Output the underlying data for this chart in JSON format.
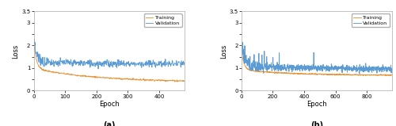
{
  "subplot_a": {
    "title": "(a)",
    "xlabel": "Epoch",
    "ylabel": "Loss",
    "xlim": [
      0,
      480
    ],
    "ylim": [
      0,
      3.5
    ],
    "xticks": [
      0,
      100,
      200,
      300,
      400
    ],
    "ytick_vals": [
      0,
      0.5,
      1.0,
      1.5,
      2.0,
      2.5,
      3.0,
      3.5
    ],
    "ytick_labels": [
      "0",
      "",
      "1",
      "",
      "2",
      "",
      "3",
      "3.5"
    ],
    "max_epoch": 480,
    "train_color": "#E8963C",
    "val_color": "#5B9BD5",
    "legend_labels": [
      "Training",
      "Validation"
    ]
  },
  "subplot_b": {
    "title": "(b)",
    "xlabel": "Epoch",
    "ylabel": "Loss",
    "xlim": [
      0,
      960
    ],
    "ylim": [
      0,
      3.5
    ],
    "xticks": [
      0,
      200,
      400,
      600,
      800
    ],
    "ytick_vals": [
      0,
      0.5,
      1.0,
      1.5,
      2.0,
      2.5,
      3.0,
      3.5
    ],
    "ytick_labels": [
      "0",
      "",
      "1",
      "",
      "2",
      "",
      "3",
      "3.5"
    ],
    "max_epoch": 960,
    "train_color": "#E8963C",
    "val_color": "#5B9BD5",
    "legend_labels": [
      "Training",
      "Validation"
    ]
  },
  "background_color": "#FFFFFF",
  "fig_background": "#FFFFFF"
}
